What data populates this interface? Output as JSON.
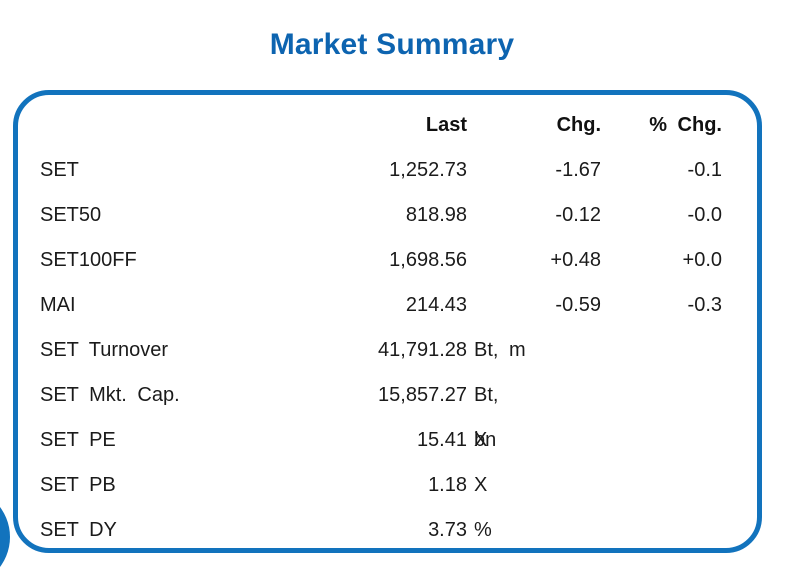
{
  "title": "Market Summary",
  "colors": {
    "accent_blue_border": "#1273bd",
    "accent_blue_title": "#0d64b0",
    "text": "#1b1b1b"
  },
  "table": {
    "headers": {
      "last": "Last",
      "chg": "Chg.",
      "pct_chg": "% Chg."
    },
    "rows": [
      {
        "label": "SET",
        "last": "1,252.73",
        "unit": "",
        "chg": "-1.67",
        "pct": "-0.1"
      },
      {
        "label": "SET50",
        "last": "818.98",
        "unit": "",
        "chg": "-0.12",
        "pct": "-0.0"
      },
      {
        "label": "SET100FF",
        "last": "1,698.56",
        "unit": "",
        "chg": "+0.48",
        "pct": "+0.0"
      },
      {
        "label": "MAI",
        "last": "214.43",
        "unit": "",
        "chg": "-0.59",
        "pct": "-0.3"
      },
      {
        "label": "SET Turnover",
        "last": "41,791.28",
        "unit": "Bt, m",
        "chg": "",
        "pct": ""
      },
      {
        "label": "SET Mkt. Cap.",
        "last": "15,857.27",
        "unit": "Bt, bn",
        "chg": "",
        "pct": ""
      },
      {
        "label": "SET PE",
        "last": "15.41",
        "unit": "X",
        "chg": "",
        "pct": ""
      },
      {
        "label": "SET PB",
        "last": "1.18",
        "unit": "X",
        "chg": "",
        "pct": ""
      },
      {
        "label": "SET DY",
        "last": "3.73",
        "unit": "%",
        "chg": "",
        "pct": ""
      }
    ]
  }
}
